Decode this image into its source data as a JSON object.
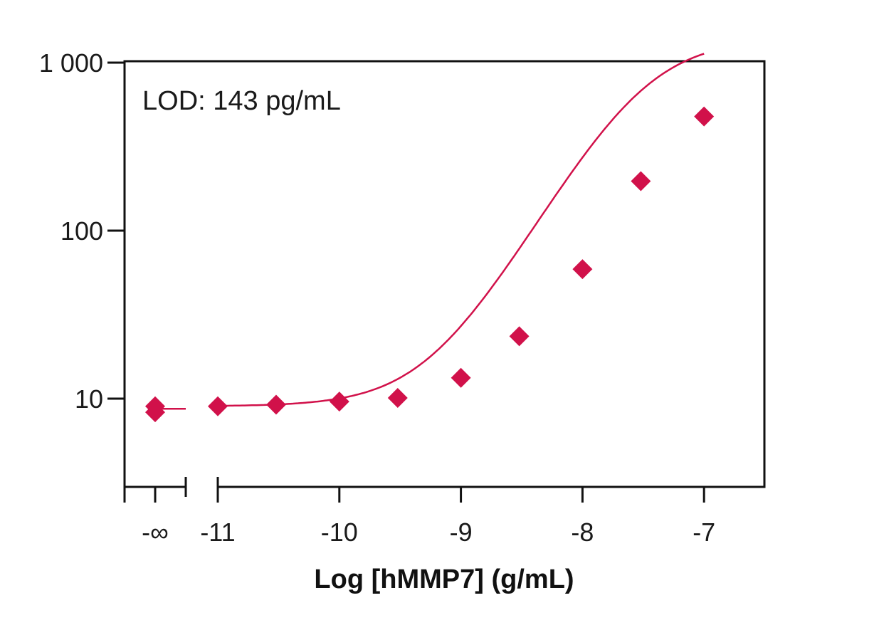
{
  "chart_data": {
    "type": "scatter",
    "title": "",
    "xlabel": "Log [hMMP7] (g/mL)",
    "ylabel": "",
    "yscale": "log",
    "ylim": [
      3,
      1000
    ],
    "xlim": [
      -11.7,
      -6.5
    ],
    "grid": false,
    "legend": "none",
    "annotation": "LOD: 143 pg/mL",
    "color": "#d1114a",
    "y_ticks": [
      {
        "value": 10,
        "label": "10"
      },
      {
        "value": 100,
        "label": "100"
      },
      {
        "value": 1000,
        "label": "1 000"
      }
    ],
    "x_ticks": [
      {
        "value": "-inf",
        "label": "-∞"
      },
      {
        "value": -11,
        "label": "-11"
      },
      {
        "value": -10,
        "label": "-10"
      },
      {
        "value": -9,
        "label": "-9"
      },
      {
        "value": -8,
        "label": "-8"
      },
      {
        "value": -7,
        "label": "-7"
      }
    ],
    "x_minor_ticks": [
      -10.5,
      -9.5,
      -8.5,
      -7.5
    ],
    "axis_break": "between -∞ and -11",
    "zero_dose_points": [
      9.0,
      8.3
    ],
    "series": [
      {
        "x": [
          -11,
          -10.52,
          -10,
          -9.52,
          -9,
          -8.52,
          -8,
          -7.52,
          -7
        ],
        "y": [
          9.0,
          9.2,
          9.6,
          10.1,
          13.3,
          23.5,
          59,
          197,
          478
        ]
      }
    ]
  }
}
